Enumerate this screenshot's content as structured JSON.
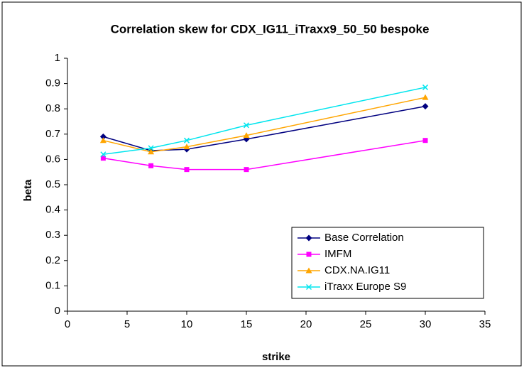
{
  "chart_data": {
    "type": "line",
    "title": "Correlation skew for CDX_IG11_iTraxx9_50_50 bespoke",
    "xlabel": "strike",
    "ylabel": "beta",
    "x": [
      3,
      7,
      10,
      15,
      30
    ],
    "series": [
      {
        "name": "Base Correlation",
        "color": "#000080",
        "marker": "diamond",
        "values": [
          0.69,
          0.635,
          0.64,
          0.68,
          0.81
        ]
      },
      {
        "name": "IMFM",
        "color": "#ff00ff",
        "marker": "square",
        "values": [
          0.605,
          0.575,
          0.56,
          0.56,
          0.675
        ]
      },
      {
        "name": "CDX.NA.IG11",
        "color": "#ffa500",
        "marker": "triangle",
        "values": [
          0.675,
          0.63,
          0.65,
          0.695,
          0.845
        ]
      },
      {
        "name": "iTraxx Europe S9",
        "color": "#00e5ee",
        "marker": "x",
        "values": [
          0.62,
          0.645,
          0.675,
          0.735,
          0.885
        ]
      }
    ],
    "xlim": [
      0,
      35
    ],
    "xticks": [
      0,
      5,
      10,
      15,
      20,
      25,
      30,
      35
    ],
    "ylim": [
      0,
      1
    ],
    "yticks": [
      0,
      0.1,
      0.2,
      0.3,
      0.4,
      0.5,
      0.6,
      0.7,
      0.8,
      0.9,
      1
    ],
    "grid": false,
    "legend": "lower right"
  }
}
